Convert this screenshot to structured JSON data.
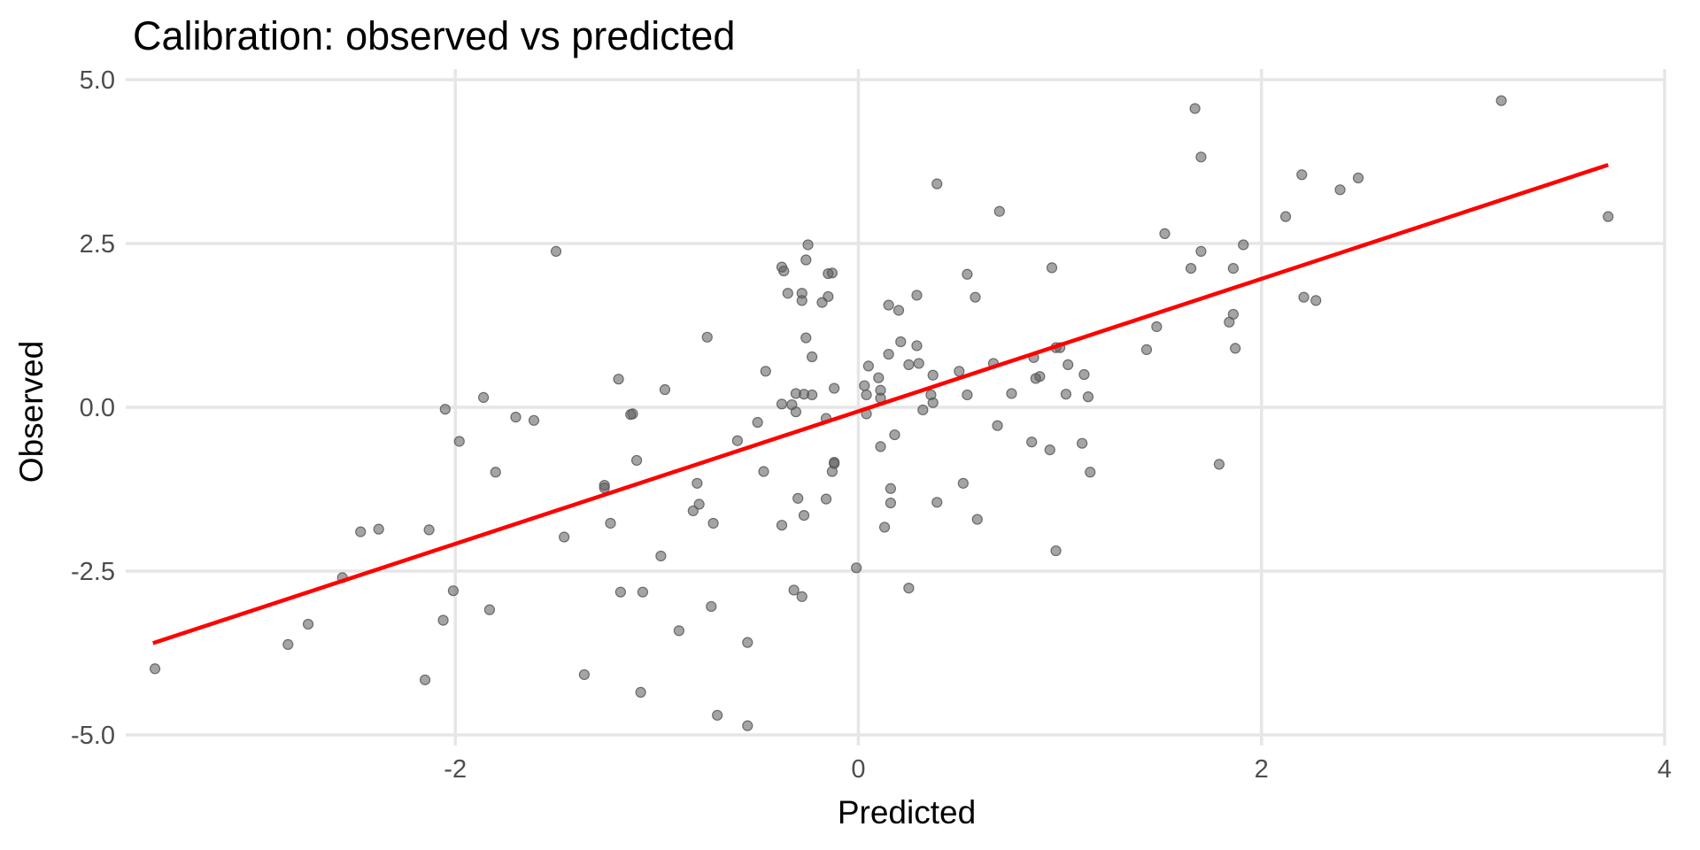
{
  "chart_data": {
    "type": "scatter",
    "title": "Calibration: observed vs predicted",
    "xlabel": "Predicted",
    "ylabel": "Observed",
    "xlim": [
      -3.6,
      4.0
    ],
    "ylim": [
      -5.0,
      5.0
    ],
    "x_ticks": [
      -2,
      0,
      2,
      4
    ],
    "x_tick_labels": [
      "-2",
      "0",
      "2",
      "4"
    ],
    "y_ticks": [
      -5,
      -2.5,
      0,
      2.5,
      5
    ],
    "y_tick_labels": [
      "-5.0",
      "-2.5",
      "0.0",
      "2.5",
      "5.0"
    ],
    "grid": true,
    "point_color": "#595959",
    "line_color": "#ff0000",
    "fit_line": {
      "x": [
        -3.5,
        3.72
      ],
      "y": [
        -3.6,
        3.7
      ]
    },
    "points": [
      [
        -3.49,
        -3.99
      ],
      [
        -2.83,
        -3.62
      ],
      [
        -2.73,
        -3.31
      ],
      [
        -2.56,
        -2.6
      ],
      [
        -2.47,
        -1.9
      ],
      [
        -2.38,
        -1.86
      ],
      [
        -2.15,
        -4.16
      ],
      [
        -2.13,
        -1.87
      ],
      [
        -2.06,
        -3.25
      ],
      [
        -2.05,
        -0.03
      ],
      [
        -2.01,
        -2.8
      ],
      [
        -1.98,
        -0.52
      ],
      [
        -1.86,
        0.15
      ],
      [
        -1.83,
        -3.09
      ],
      [
        -1.8,
        -0.99
      ],
      [
        -1.7,
        -0.15
      ],
      [
        -1.61,
        -0.2
      ],
      [
        -1.5,
        2.38
      ],
      [
        -1.46,
        -1.98
      ],
      [
        -1.36,
        -4.08
      ],
      [
        -1.26,
        -1.19
      ],
      [
        -1.26,
        -1.23
      ],
      [
        -1.23,
        -1.77
      ],
      [
        -1.19,
        0.43
      ],
      [
        -1.18,
        -2.82
      ],
      [
        -1.13,
        -0.11
      ],
      [
        -1.12,
        -0.1
      ],
      [
        -1.1,
        -0.81
      ],
      [
        -1.08,
        -4.35
      ],
      [
        -1.07,
        -2.82
      ],
      [
        -0.98,
        -2.27
      ],
      [
        -0.96,
        0.27
      ],
      [
        -0.89,
        -3.41
      ],
      [
        -0.82,
        -1.58
      ],
      [
        -0.8,
        -1.16
      ],
      [
        -0.79,
        -1.48
      ],
      [
        -0.75,
        1.07
      ],
      [
        -0.73,
        -3.04
      ],
      [
        -0.72,
        -1.77
      ],
      [
        -0.7,
        -4.7
      ],
      [
        -0.6,
        -0.51
      ],
      [
        -0.55,
        -3.59
      ],
      [
        -0.55,
        -4.86
      ],
      [
        -0.5,
        -0.23
      ],
      [
        -0.47,
        -0.98
      ],
      [
        -0.46,
        0.55
      ],
      [
        -0.38,
        -1.8
      ],
      [
        -0.38,
        0.05
      ],
      [
        -0.38,
        2.14
      ],
      [
        -0.37,
        2.08
      ],
      [
        -0.35,
        1.74
      ],
      [
        -0.33,
        0.04
      ],
      [
        -0.32,
        -2.79
      ],
      [
        -0.31,
        0.21
      ],
      [
        -0.31,
        -0.07
      ],
      [
        -0.3,
        -1.39
      ],
      [
        -0.28,
        1.74
      ],
      [
        -0.28,
        1.63
      ],
      [
        -0.28,
        -2.89
      ],
      [
        -0.27,
        -1.65
      ],
      [
        -0.27,
        0.2
      ],
      [
        -0.26,
        2.25
      ],
      [
        -0.26,
        1.06
      ],
      [
        -0.25,
        2.48
      ],
      [
        -0.23,
        0.19
      ],
      [
        -0.23,
        0.77
      ],
      [
        -0.18,
        1.6
      ],
      [
        -0.16,
        -1.4
      ],
      [
        -0.16,
        -0.17
      ],
      [
        -0.15,
        1.69
      ],
      [
        -0.15,
        2.04
      ],
      [
        -0.13,
        2.05
      ],
      [
        -0.13,
        -0.98
      ],
      [
        -0.12,
        -0.86
      ],
      [
        -0.12,
        -0.84
      ],
      [
        -0.12,
        0.29
      ],
      [
        -0.01,
        -2.45
      ],
      [
        0.03,
        0.33
      ],
      [
        0.04,
        -0.1
      ],
      [
        0.04,
        0.19
      ],
      [
        0.05,
        0.63
      ],
      [
        0.1,
        0.45
      ],
      [
        0.11,
        0.26
      ],
      [
        0.11,
        0.14
      ],
      [
        0.11,
        -0.6
      ],
      [
        0.13,
        -1.83
      ],
      [
        0.15,
        0.81
      ],
      [
        0.15,
        1.56
      ],
      [
        0.16,
        -1.24
      ],
      [
        0.16,
        -1.46
      ],
      [
        0.18,
        -0.42
      ],
      [
        0.2,
        1.48
      ],
      [
        0.21,
        1.0
      ],
      [
        0.25,
        -2.76
      ],
      [
        0.25,
        0.65
      ],
      [
        0.29,
        0.94
      ],
      [
        0.29,
        1.71
      ],
      [
        0.3,
        0.67
      ],
      [
        0.32,
        -0.04
      ],
      [
        0.36,
        0.19
      ],
      [
        0.37,
        0.49
      ],
      [
        0.37,
        0.07
      ],
      [
        0.39,
        -1.45
      ],
      [
        0.39,
        3.41
      ],
      [
        0.5,
        0.55
      ],
      [
        0.52,
        -1.16
      ],
      [
        0.54,
        0.19
      ],
      [
        0.54,
        2.03
      ],
      [
        0.58,
        1.68
      ],
      [
        0.59,
        -1.71
      ],
      [
        0.67,
        0.67
      ],
      [
        0.69,
        -0.28
      ],
      [
        0.7,
        2.99
      ],
      [
        0.76,
        0.21
      ],
      [
        0.86,
        -0.53
      ],
      [
        0.87,
        0.76
      ],
      [
        0.88,
        0.44
      ],
      [
        0.9,
        0.47
      ],
      [
        0.95,
        -0.65
      ],
      [
        0.96,
        2.13
      ],
      [
        0.98,
        0.91
      ],
      [
        0.98,
        -2.19
      ],
      [
        1.0,
        0.91
      ],
      [
        1.03,
        0.2
      ],
      [
        1.04,
        0.65
      ],
      [
        1.11,
        -0.55
      ],
      [
        1.12,
        0.5
      ],
      [
        1.14,
        0.16
      ],
      [
        1.15,
        -0.99
      ],
      [
        1.43,
        0.88
      ],
      [
        1.48,
        1.23
      ],
      [
        1.52,
        2.65
      ],
      [
        1.65,
        2.12
      ],
      [
        1.67,
        4.56
      ],
      [
        1.7,
        2.38
      ],
      [
        1.7,
        3.82
      ],
      [
        1.79,
        -0.87
      ],
      [
        1.84,
        1.3
      ],
      [
        1.86,
        1.42
      ],
      [
        1.86,
        2.12
      ],
      [
        1.87,
        0.9
      ],
      [
        1.91,
        2.48
      ],
      [
        2.12,
        2.91
      ],
      [
        2.2,
        3.55
      ],
      [
        2.21,
        1.68
      ],
      [
        2.27,
        1.63
      ],
      [
        2.39,
        3.32
      ],
      [
        2.48,
        3.5
      ],
      [
        3.19,
        4.68
      ],
      [
        3.72,
        2.91
      ]
    ]
  }
}
